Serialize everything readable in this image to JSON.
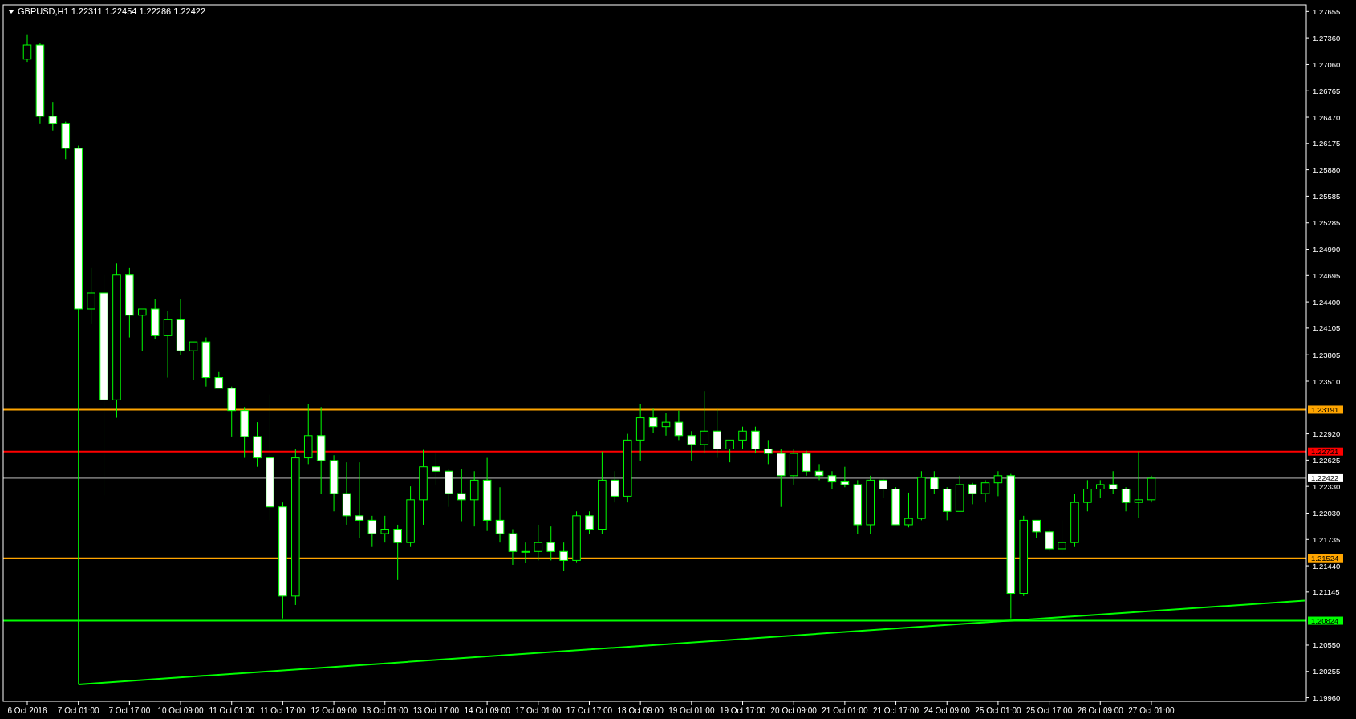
{
  "chart_data": {
    "type": "candlestick",
    "title": "GBPUSD,H1  1.22311 1.22454 1.22286 1.22422",
    "color": "#00ff00",
    "categories": [
      "6 Oct 2016",
      null,
      null,
      null,
      "7 Oct 01:00",
      null,
      null,
      null,
      "7 Oct 17:00",
      null,
      null,
      null,
      "10 Oct 09:00",
      null,
      null,
      null,
      "11 Oct 01:00",
      null,
      null,
      null,
      "11 Oct 17:00",
      null,
      null,
      null,
      "12 Oct 09:00",
      null,
      null,
      null,
      "13 Oct 01:00",
      null,
      null,
      null,
      "13 Oct 17:00",
      null,
      null,
      null,
      "14 Oct 09:00",
      null,
      null,
      null,
      "17 Oct 01:00",
      null,
      null,
      null,
      "17 Oct 17:00",
      null,
      null,
      null,
      "18 Oct 09:00",
      null,
      null,
      null,
      "19 Oct 01:00",
      null,
      null,
      null,
      "19 Oct 17:00",
      null,
      null,
      null,
      "20 Oct 09:00",
      null,
      null,
      null,
      "21 Oct 01:00",
      null,
      null,
      null,
      "21 Oct 17:00",
      null,
      null,
      null,
      "24 Oct 09:00",
      null,
      null,
      null,
      "25 Oct 01:00",
      null,
      null,
      null,
      "25 Oct 17:00",
      null,
      null,
      null,
      "26 Oct 09:00",
      null,
      null,
      null,
      "27 Oct 01:00",
      null,
      null,
      null,
      null,
      null,
      null,
      null,
      null,
      null,
      null,
      null,
      null
    ],
    "ohlc": [
      [
        1.2712,
        1.274,
        1.2709,
        1.2728
      ],
      [
        1.2728,
        1.273,
        1.264,
        1.2648
      ],
      [
        1.2648,
        1.2664,
        1.2632,
        1.264
      ],
      [
        1.264,
        1.2642,
        1.26,
        1.2612
      ],
      [
        1.2612,
        1.2615,
        1.2011,
        1.2432
      ],
      [
        1.2432,
        1.2478,
        1.2415,
        1.245
      ],
      [
        1.245,
        1.247,
        1.2223,
        1.233
      ],
      [
        1.233,
        1.2483,
        1.231,
        1.247
      ],
      [
        1.247,
        1.2478,
        1.24,
        1.2425
      ],
      [
        1.2425,
        1.2432,
        1.2385,
        1.2432
      ],
      [
        1.2432,
        1.2443,
        1.2398,
        1.2402
      ],
      [
        1.2402,
        1.243,
        1.2355,
        1.242
      ],
      [
        1.242,
        1.2443,
        1.238,
        1.2385
      ],
      [
        1.2385,
        1.2395,
        1.2352,
        1.2395
      ],
      [
        1.2395,
        1.24,
        1.2345,
        1.2355
      ],
      [
        1.2355,
        1.2362,
        1.2343,
        1.2343
      ],
      [
        1.2343,
        1.2345,
        1.2289,
        1.2318
      ],
      [
        1.2318,
        1.2322,
        1.2265,
        1.2289
      ],
      [
        1.2289,
        1.2305,
        1.2255,
        1.2265
      ],
      [
        1.2265,
        1.2336,
        1.2195,
        1.221
      ],
      [
        1.221,
        1.2215,
        1.2085,
        1.211
      ],
      [
        1.211,
        1.2275,
        1.21,
        1.2265
      ],
      [
        1.2265,
        1.2325,
        1.2258,
        1.229
      ],
      [
        1.229,
        1.2322,
        1.2225,
        1.2262
      ],
      [
        1.2262,
        1.2268,
        1.2205,
        1.2225
      ],
      [
        1.2225,
        1.226,
        1.219,
        1.22
      ],
      [
        1.22,
        1.226,
        1.2175,
        1.2195
      ],
      [
        1.2195,
        1.22,
        1.2165,
        1.218
      ],
      [
        1.218,
        1.22,
        1.217,
        1.2185
      ],
      [
        1.2185,
        1.219,
        1.2128,
        1.217
      ],
      [
        1.217,
        1.2233,
        1.2165,
        1.2218
      ],
      [
        1.2218,
        1.2274,
        1.219,
        1.2255
      ],
      [
        1.2255,
        1.227,
        1.2235,
        1.225
      ],
      [
        1.225,
        1.2252,
        1.221,
        1.2225
      ],
      [
        1.2225,
        1.2252,
        1.2194,
        1.2218
      ],
      [
        1.2218,
        1.225,
        1.2188,
        1.224
      ],
      [
        1.224,
        1.2265,
        1.2183,
        1.2195
      ],
      [
        1.2195,
        1.2232,
        1.217,
        1.218
      ],
      [
        1.218,
        1.2185,
        1.2145,
        1.216
      ],
      [
        1.216,
        1.217,
        1.2147,
        1.216
      ],
      [
        1.216,
        1.219,
        1.215,
        1.217
      ],
      [
        1.217,
        1.2188,
        1.215,
        1.216
      ],
      [
        1.216,
        1.217,
        1.2138,
        1.215
      ],
      [
        1.215,
        1.2205,
        1.2148,
        1.22
      ],
      [
        1.22,
        1.2205,
        1.218,
        1.2185
      ],
      [
        1.2185,
        1.2272,
        1.218,
        1.224
      ],
      [
        1.224,
        1.225,
        1.2215,
        1.2222
      ],
      [
        1.2222,
        1.2292,
        1.2215,
        1.2285
      ],
      [
        1.2285,
        1.2325,
        1.2262,
        1.231
      ],
      [
        1.231,
        1.232,
        1.2293,
        1.23
      ],
      [
        1.23,
        1.2315,
        1.229,
        1.2305
      ],
      [
        1.2305,
        1.2318,
        1.2285,
        1.229
      ],
      [
        1.229,
        1.2295,
        1.2262,
        1.228
      ],
      [
        1.228,
        1.234,
        1.227,
        1.2295
      ],
      [
        1.2295,
        1.232,
        1.2265,
        1.2275
      ],
      [
        1.2275,
        1.2285,
        1.226,
        1.2285
      ],
      [
        1.2285,
        1.23,
        1.2275,
        1.2295
      ],
      [
        1.2295,
        1.23,
        1.227,
        1.2275
      ],
      [
        1.2275,
        1.2285,
        1.2258,
        1.227
      ],
      [
        1.227,
        1.2275,
        1.221,
        1.2245
      ],
      [
        1.2245,
        1.2275,
        1.2235,
        1.227
      ],
      [
        1.227,
        1.2273,
        1.2245,
        1.225
      ],
      [
        1.225,
        1.2258,
        1.224,
        1.2245
      ],
      [
        1.2245,
        1.225,
        1.223,
        1.2238
      ],
      [
        1.2238,
        1.2255,
        1.2232,
        1.2235
      ],
      [
        1.2235,
        1.224,
        1.218,
        1.219
      ],
      [
        1.219,
        1.2245,
        1.218,
        1.224
      ],
      [
        1.224,
        1.2242,
        1.222,
        1.223
      ],
      [
        1.223,
        1.2232,
        1.219,
        1.219
      ],
      [
        1.219,
        1.2226,
        1.2187,
        1.2197
      ],
      [
        1.2197,
        1.225,
        1.2195,
        1.2243
      ],
      [
        1.2243,
        1.225,
        1.2225,
        1.223
      ],
      [
        1.223,
        1.2232,
        1.2195,
        1.2205
      ],
      [
        1.2205,
        1.2245,
        1.2205,
        1.2235
      ],
      [
        1.2235,
        1.2237,
        1.2213,
        1.2225
      ],
      [
        1.2225,
        1.224,
        1.2215,
        1.2237
      ],
      [
        1.2237,
        1.225,
        1.2222,
        1.2245
      ],
      [
        1.2245,
        1.2247,
        1.2085,
        1.2113
      ],
      [
        1.2113,
        1.22,
        1.211,
        1.2195
      ],
      [
        1.2195,
        1.2195,
        1.2175,
        1.2182
      ],
      [
        1.2182,
        1.2185,
        1.216,
        1.2163
      ],
      [
        1.2163,
        1.2195,
        1.2158,
        1.217
      ],
      [
        1.217,
        1.2225,
        1.2165,
        1.2215
      ],
      [
        1.2215,
        1.224,
        1.2205,
        1.223
      ],
      [
        1.223,
        1.224,
        1.222,
        1.2235
      ],
      [
        1.2235,
        1.225,
        1.2225,
        1.223
      ],
      [
        1.223,
        1.2232,
        1.2205,
        1.2215
      ],
      [
        1.2215,
        1.2272,
        1.2198,
        1.2218
      ],
      [
        1.2218,
        1.2245,
        1.2215,
        1.2242
      ],
      null,
      null,
      null,
      null,
      null,
      null,
      null,
      null,
      null,
      null,
      null,
      null
    ],
    "series": [
      {
        "type": "line",
        "values": [
          null,
          null,
          null,
          null,
          1.2011,
          null,
          null,
          null,
          null,
          null,
          null,
          null,
          null,
          null,
          null,
          null,
          null,
          null,
          null,
          null,
          null,
          null,
          null,
          null,
          null,
          null,
          null,
          null,
          null,
          null,
          null,
          null,
          null,
          null,
          null,
          null,
          null,
          null,
          null,
          null,
          null,
          null,
          null,
          null,
          null,
          null,
          null,
          null,
          null,
          null,
          null,
          null,
          null,
          null,
          null,
          null,
          null,
          null,
          null,
          null,
          null,
          null,
          null,
          null,
          null,
          null,
          null,
          null,
          null,
          null,
          null,
          null,
          null,
          null,
          null,
          null,
          null,
          null,
          null,
          null,
          null,
          null,
          null,
          null,
          null,
          null,
          null,
          null,
          null,
          null,
          null,
          null,
          null,
          null,
          null,
          null,
          null,
          null,
          null,
          null,
          1.2105
        ],
        "color": "#00ff00"
      }
    ],
    "ylim": [
      1.1992,
      1.2773
    ],
    "yticks": [
      1.27655,
      {
        "value": 1.2736,
        "label": "1.27360"
      },
      {
        "value": 1.2706,
        "label": "1.27060"
      },
      1.26765,
      {
        "value": 1.2647,
        "label": "1.26470"
      },
      1.26175,
      {
        "value": 1.2588,
        "label": "1.25880"
      },
      1.25585,
      1.25285,
      {
        "value": 1.2499,
        "label": "1.24990"
      },
      1.24695,
      {
        "value": 1.244,
        "label": "1.24400"
      },
      1.24105,
      1.23805,
      {
        "value": 1.2351,
        "label": "1.23510"
      },
      {
        "value": 1.2292,
        "label": "1.22920"
      },
      1.22625,
      {
        "value": 1.2233,
        "label": "1.22330"
      },
      {
        "value": 1.2203,
        "label": "1.22030"
      },
      1.21735,
      {
        "value": 1.2144,
        "label": "1.21440"
      },
      1.21145,
      {
        "value": 1.2055,
        "label": "1.20550"
      },
      1.20255,
      {
        "value": 1.1996,
        "label": "1.19960"
      }
    ],
    "ref_lines": [
      {
        "axis": "y",
        "value": 1.23191,
        "label": "1.23191",
        "color": "#ffa500"
      },
      {
        "axis": "y",
        "value": 1.22721,
        "label": "1.22721",
        "color": "#ff0000"
      },
      {
        "axis": "y",
        "value": 1.22422,
        "label": "1.22422",
        "color": "#c0c0c0"
      },
      {
        "axis": "y",
        "value": 1.21524,
        "label": "1.21524",
        "color": "#ffa500"
      },
      {
        "axis": "y",
        "value": 1.20824,
        "label": "1.20824",
        "color": "#00ff00"
      }
    ]
  }
}
